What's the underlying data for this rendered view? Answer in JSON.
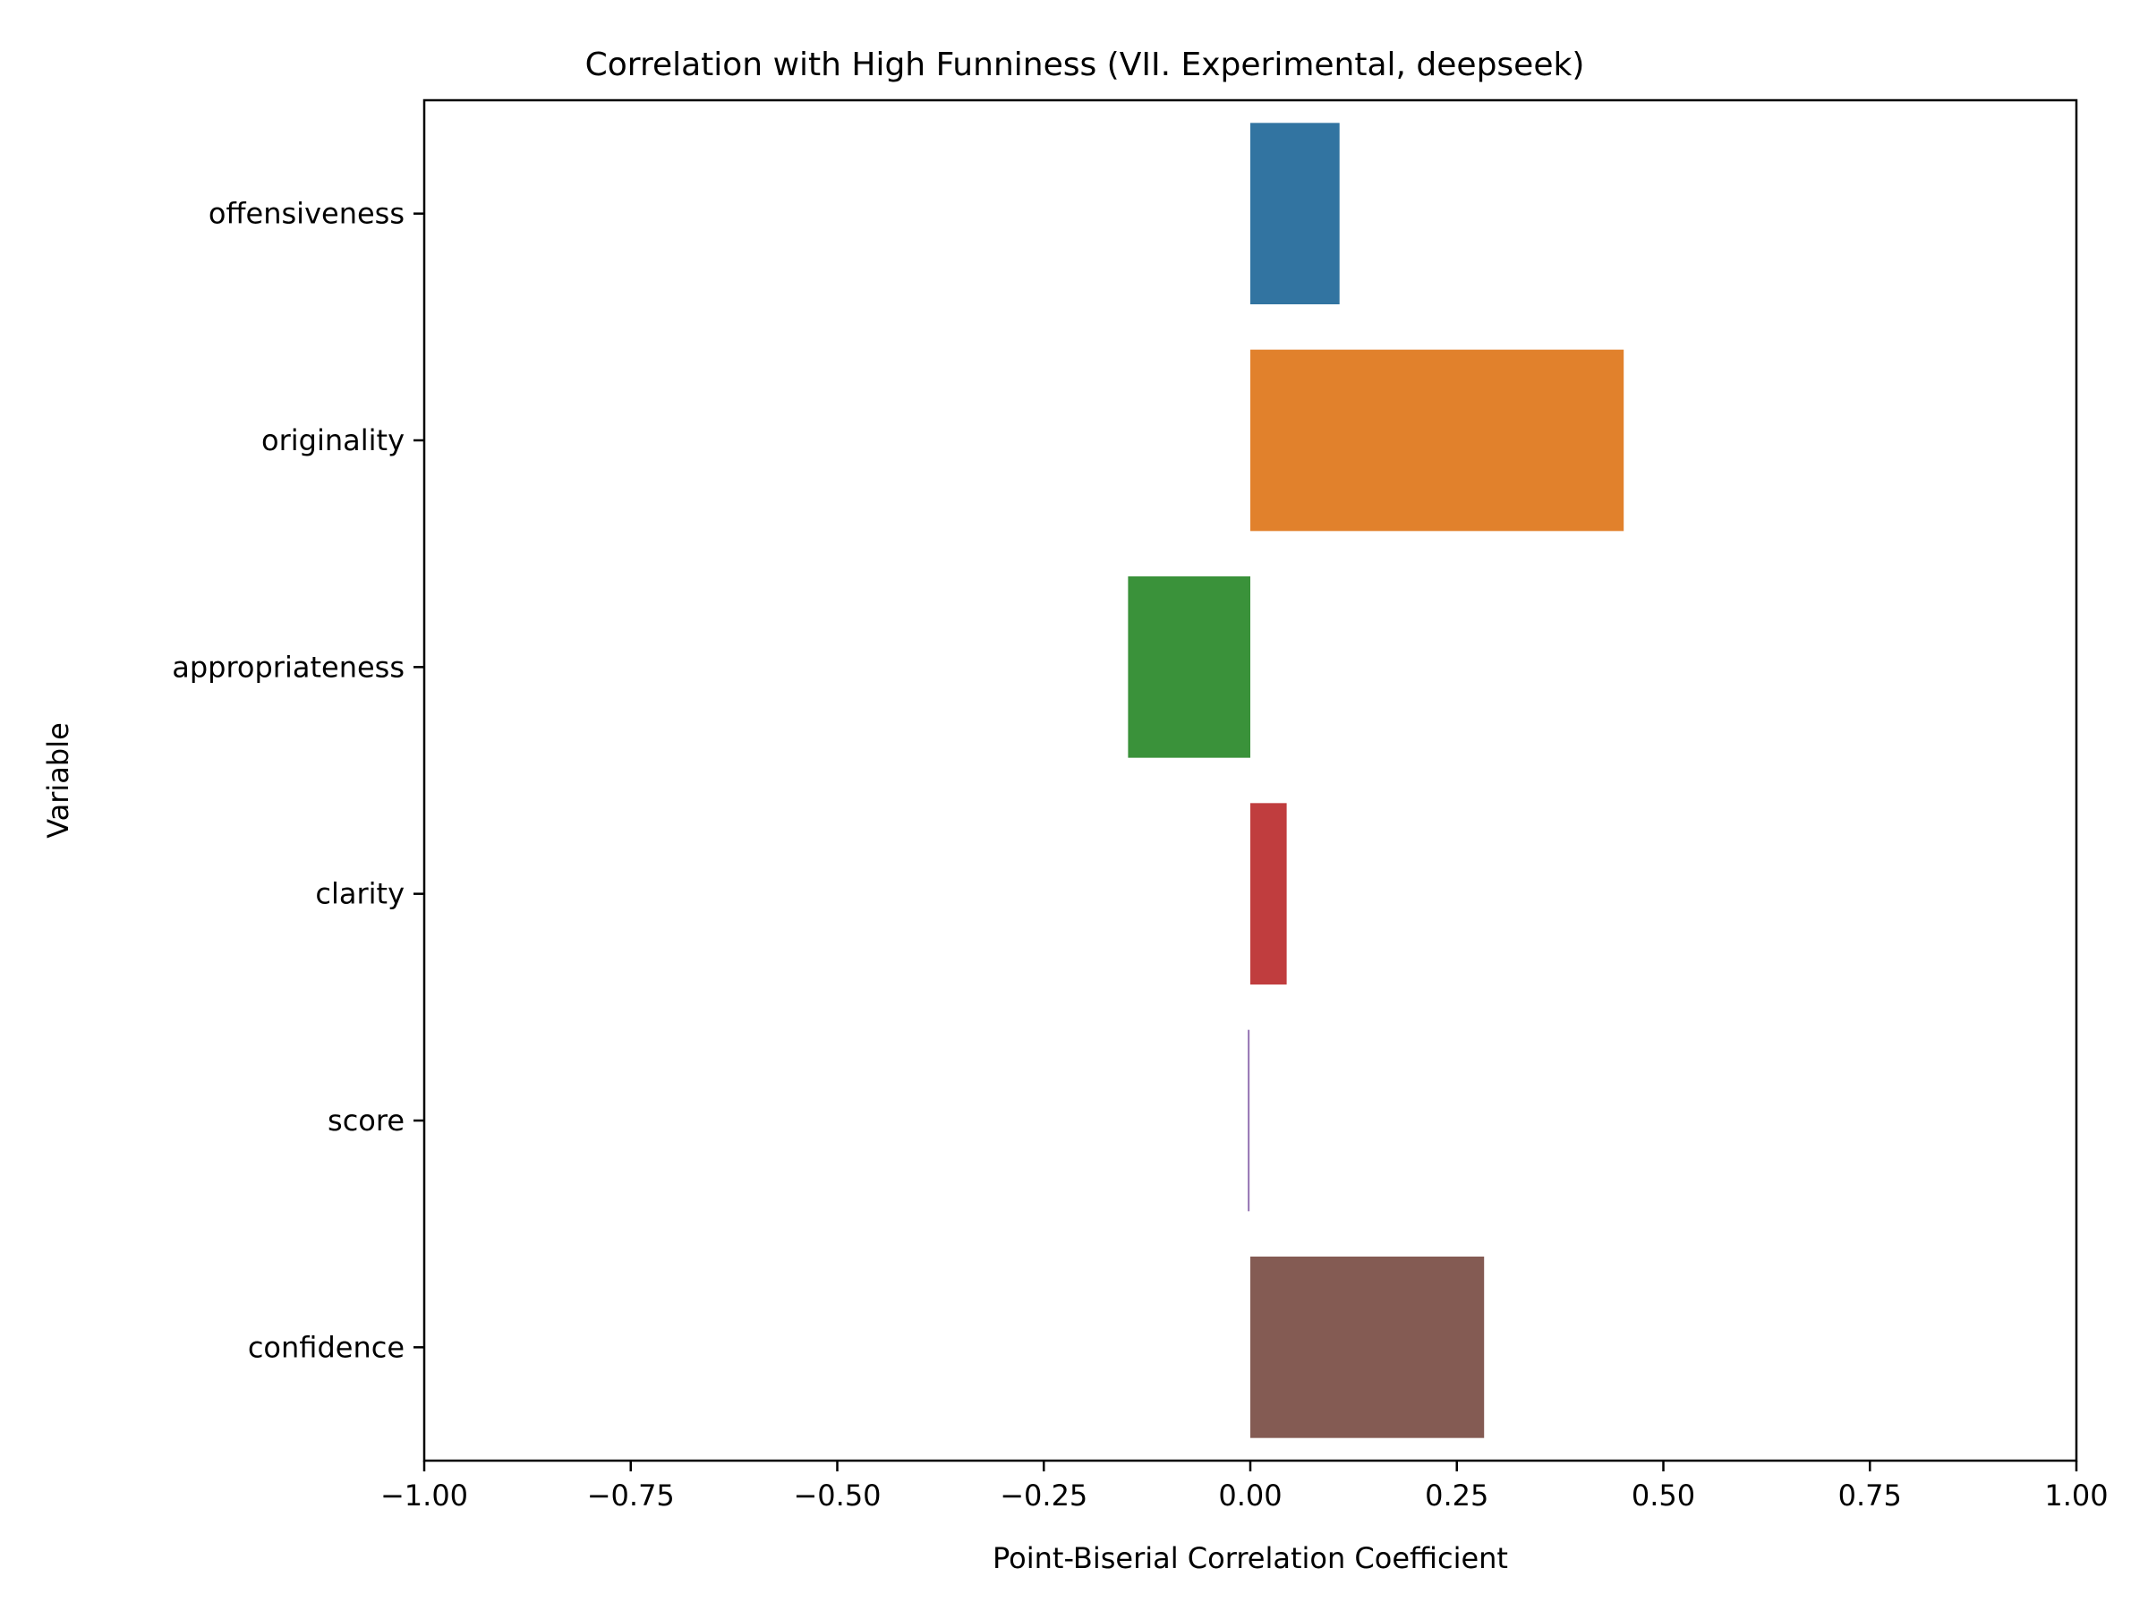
{
  "chart_data": {
    "type": "bar",
    "orientation": "horizontal",
    "title": "Correlation with High Funniness (VII. Experimental, deepseek)",
    "xlabel": "Point-Biserial Correlation Coefficient",
    "ylabel": "Variable",
    "xlim": [
      -1.0,
      1.0
    ],
    "xticks": [
      -1.0,
      -0.75,
      -0.5,
      -0.25,
      0.0,
      0.25,
      0.5,
      0.75,
      1.0
    ],
    "xtick_labels": [
      "−1.00",
      "−0.75",
      "−0.50",
      "−0.25",
      "0.00",
      "0.25",
      "0.50",
      "0.75",
      "1.00"
    ],
    "categories": [
      "offensiveness",
      "originality",
      "appropriateness",
      "clarity",
      "score",
      "confidence"
    ],
    "values": [
      0.108,
      0.452,
      -0.148,
      0.044,
      -0.002,
      0.283
    ],
    "colors": [
      "#3274a1",
      "#e1812c",
      "#3a923a",
      "#c03d3e",
      "#9372b2",
      "#845b53"
    ],
    "grid": false,
    "legend": "none"
  }
}
